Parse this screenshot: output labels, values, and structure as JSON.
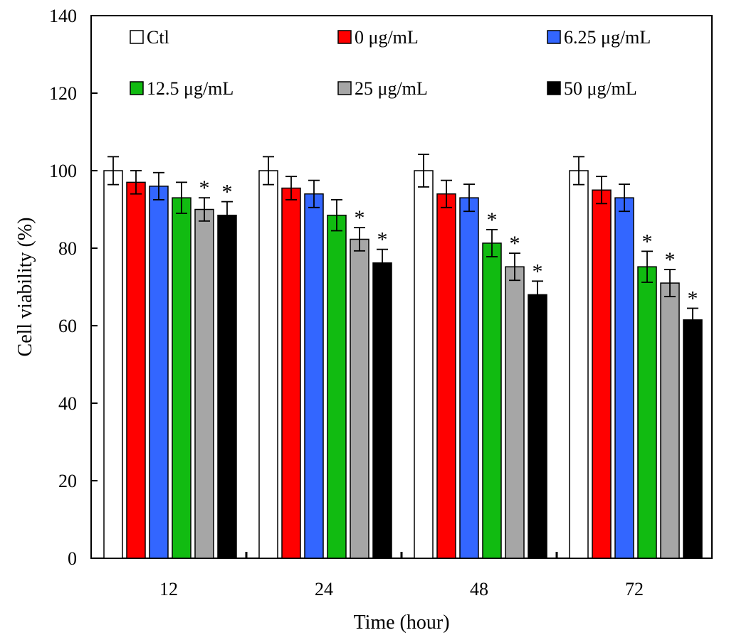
{
  "chart_data": {
    "type": "bar",
    "title": "",
    "xlabel": "Time (hour)",
    "ylabel": "Cell viability (%)",
    "ylim": [
      0,
      140
    ],
    "yticks": [
      0,
      20,
      40,
      60,
      80,
      100,
      120,
      140
    ],
    "categories": [
      "12",
      "24",
      "48",
      "72"
    ],
    "legend_position": "top",
    "significance_marker": "*",
    "series": [
      {
        "name": "Ctl",
        "color": "#ffffff",
        "values": [
          100,
          100,
          100,
          100
        ],
        "errors": [
          3.6,
          3.6,
          4.2,
          3.6
        ],
        "significant": [
          false,
          false,
          false,
          false
        ]
      },
      {
        "name": "0 μg/mL",
        "color": "#ff0000",
        "values": [
          97,
          95.5,
          94,
          95
        ],
        "errors": [
          3,
          3,
          3.5,
          3.5
        ],
        "significant": [
          false,
          false,
          false,
          false
        ]
      },
      {
        "name": "6.25 μg/mL",
        "color": "#3366ff",
        "values": [
          96,
          94,
          93,
          93
        ],
        "errors": [
          3.5,
          3.5,
          3.5,
          3.5
        ],
        "significant": [
          false,
          false,
          false,
          false
        ]
      },
      {
        "name": "12.5 μg/mL",
        "color": "#11bb11",
        "values": [
          93,
          88.5,
          81.3,
          75.2
        ],
        "errors": [
          4,
          4,
          3.5,
          4
        ],
        "significant": [
          false,
          false,
          true,
          true
        ]
      },
      {
        "name": "25 μg/mL",
        "color": "#a6a6a6",
        "values": [
          90,
          82.3,
          75.2,
          71
        ],
        "errors": [
          3,
          3,
          3.5,
          3.5
        ],
        "significant": [
          true,
          true,
          true,
          true
        ]
      },
      {
        "name": "50 μg/mL",
        "color": "#000000",
        "values": [
          88.5,
          76.2,
          68,
          61.5
        ],
        "errors": [
          3.5,
          3.5,
          3.5,
          3
        ],
        "significant": [
          true,
          true,
          true,
          true
        ]
      }
    ]
  }
}
